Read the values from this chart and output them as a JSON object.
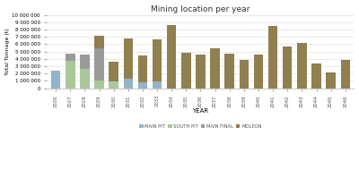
{
  "title": "Mining location per year",
  "xlabel": "YEAR",
  "ylabel": "Total Tonnage (t)",
  "years": [
    2026,
    2027,
    2028,
    2029,
    2030,
    2031,
    2032,
    2033,
    2034,
    2035,
    2036,
    2037,
    2038,
    2039,
    2040,
    2041,
    2042,
    2043,
    2044,
    2045,
    2046
  ],
  "main_pit": [
    2400000,
    0,
    0,
    0,
    0,
    1300000,
    800000,
    950000,
    0,
    0,
    0,
    0,
    0,
    0,
    0,
    0,
    0,
    0,
    0,
    0,
    0
  ],
  "south_pit": [
    0,
    3700000,
    2600000,
    1000000,
    950000,
    0,
    0,
    0,
    0,
    0,
    0,
    0,
    0,
    0,
    0,
    0,
    0,
    0,
    0,
    0,
    0
  ],
  "main_final": [
    0,
    1000000,
    2000000,
    4400000,
    0,
    0,
    0,
    0,
    0,
    0,
    0,
    0,
    0,
    0,
    0,
    0,
    0,
    0,
    0,
    0,
    0
  ],
  "moleon": [
    0,
    0,
    0,
    1800000,
    2700000,
    5500000,
    3700000,
    5700000,
    8600000,
    4800000,
    4600000,
    5500000,
    4700000,
    3800000,
    4600000,
    8500000,
    5700000,
    6200000,
    3400000,
    2100000,
    3800000
  ],
  "color_main_pit": "#92b4c8",
  "color_south_pit": "#a8c89a",
  "color_main_final": "#9a9a9a",
  "color_moleon": "#908050",
  "ylim": [
    0,
    10000000
  ],
  "ytick_interval": 1000000,
  "grid_color": "#e0e0e0",
  "legend_labels": [
    "MAIN PIT",
    "SOUTH PIT",
    "MAIN FINAL",
    "MOLEON"
  ]
}
